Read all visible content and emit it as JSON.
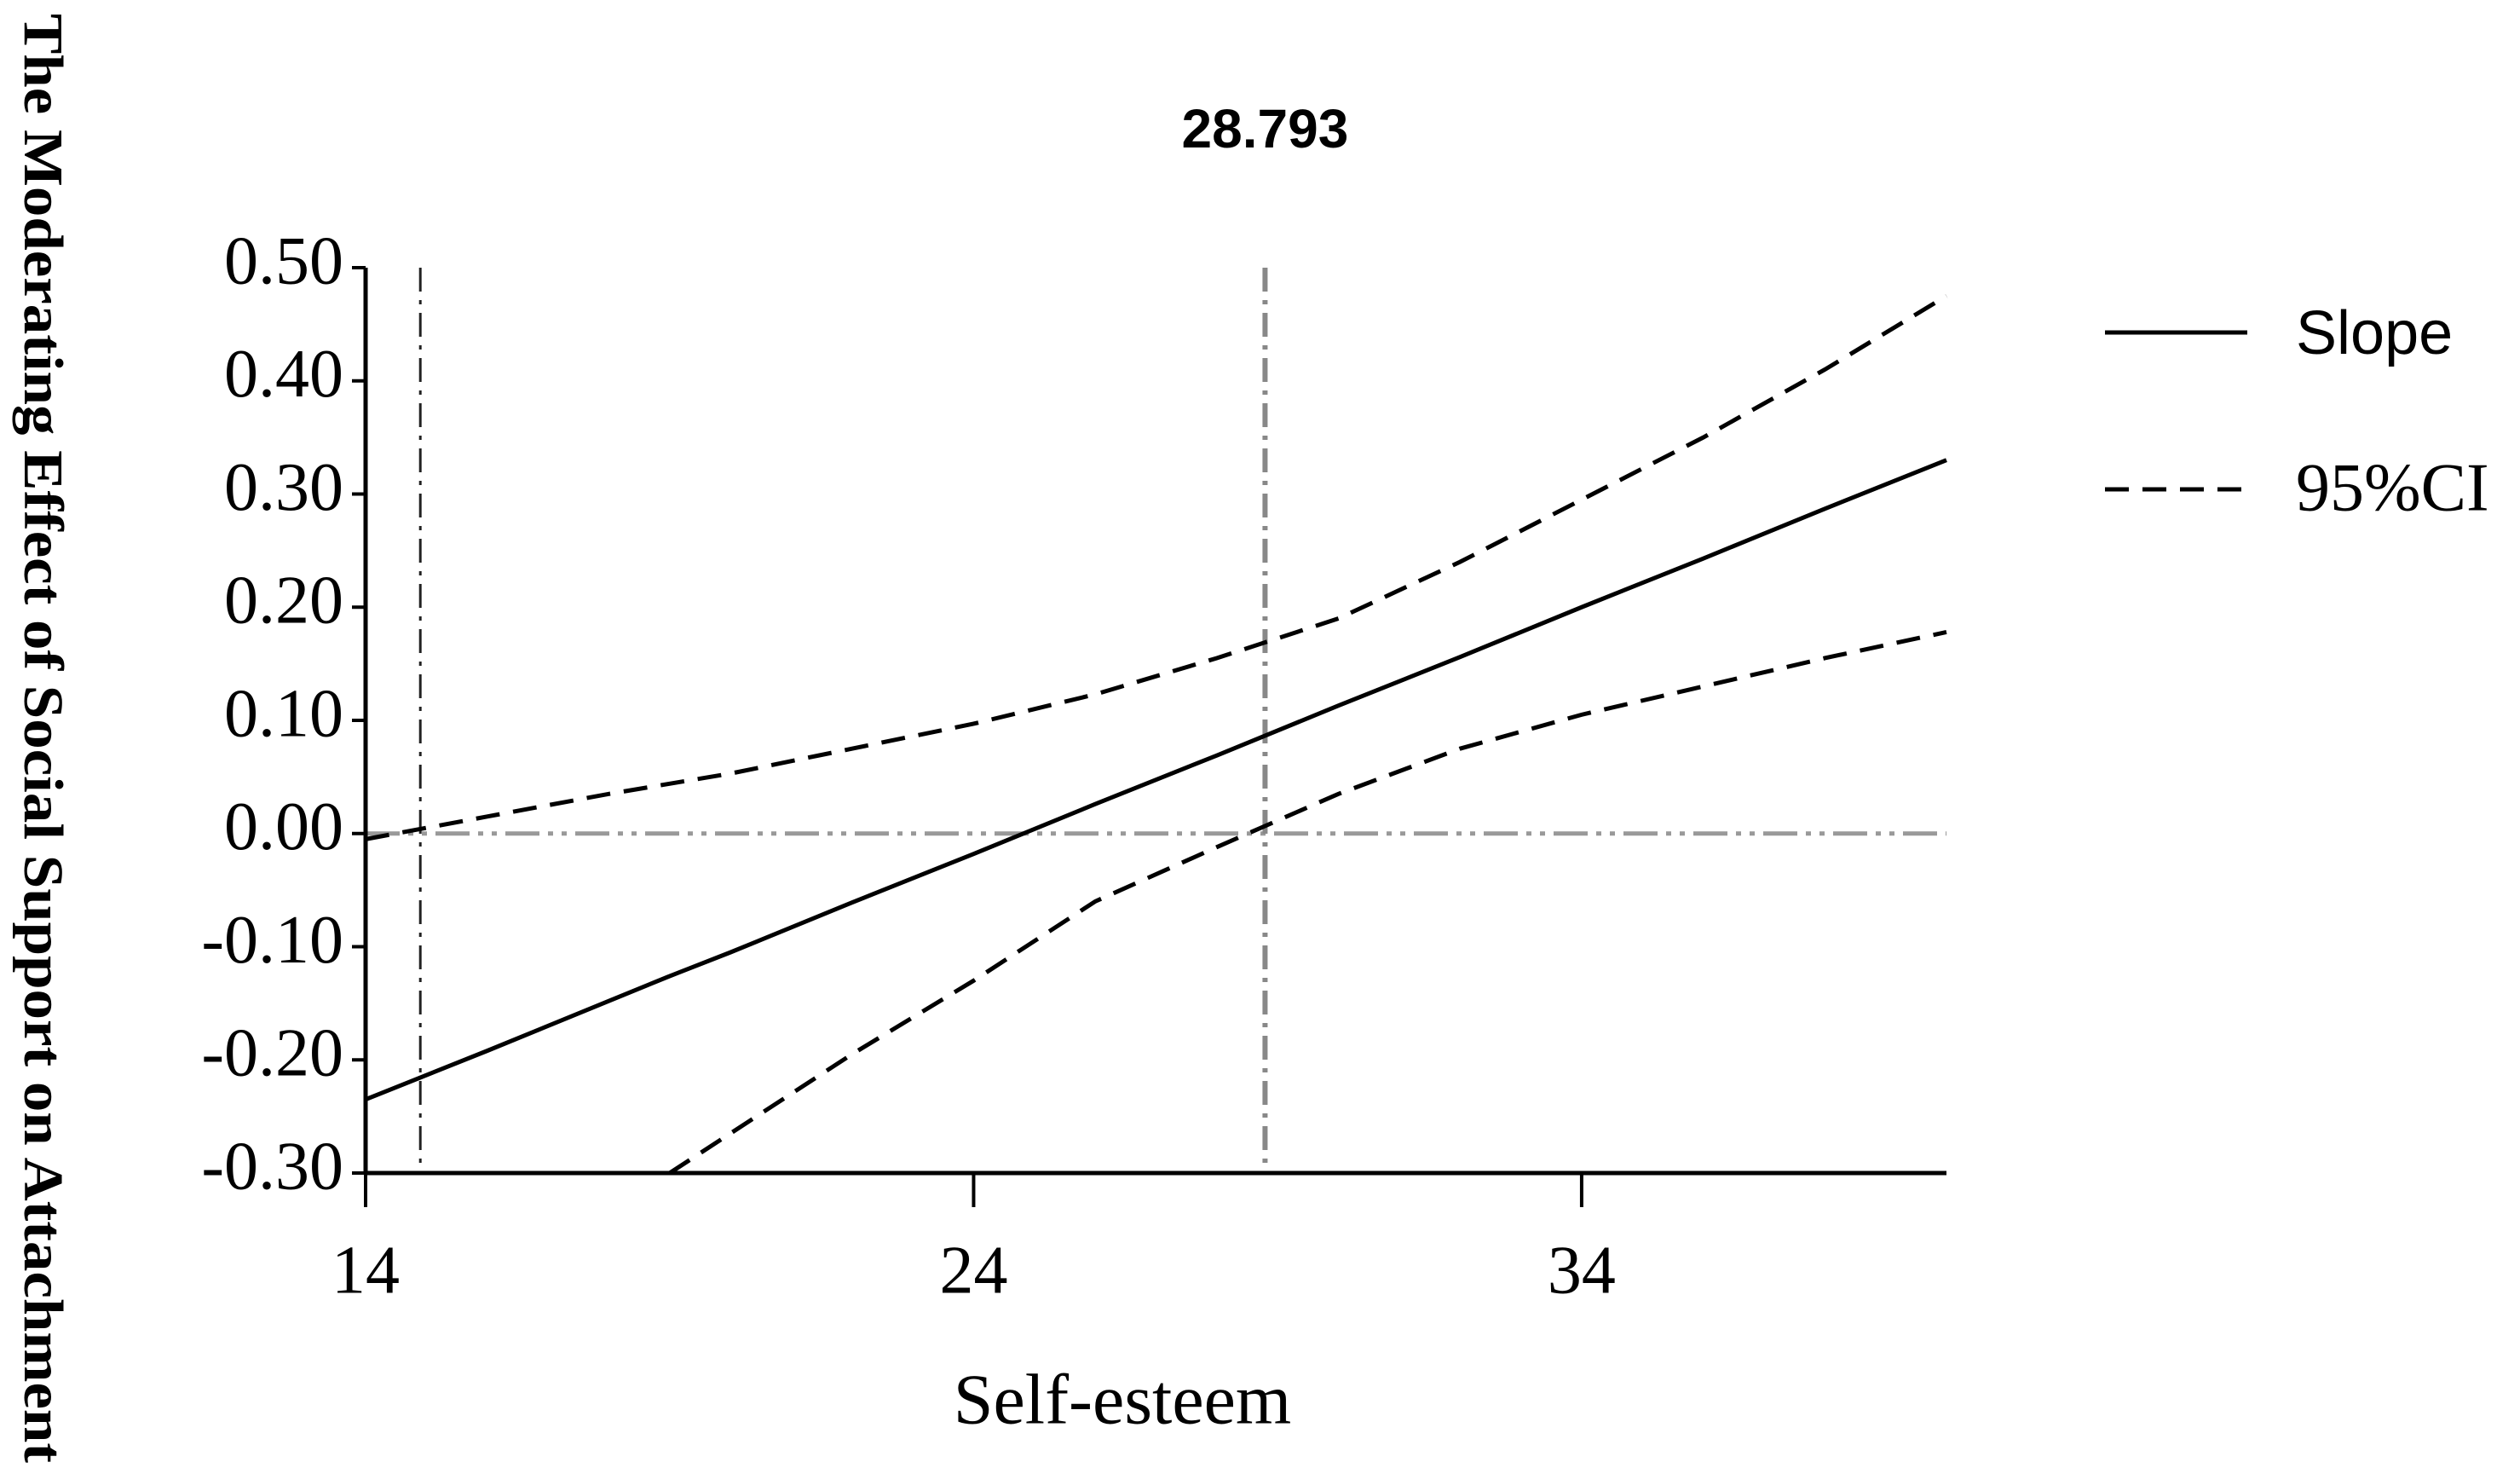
{
  "chart_data": {
    "type": "line",
    "ylabel": "The Moderating Effect of Social Support on Attachment",
    "xlabel": "Self-esteem",
    "x": [
      14,
      16,
      18,
      19,
      20,
      22,
      24,
      26,
      28,
      30,
      32,
      34,
      36,
      38,
      40
    ],
    "series": [
      {
        "name": "Slope",
        "color": "#000000",
        "dash": "solid",
        "values": [
          -0.235,
          -0.192,
          -0.148,
          -0.126,
          -0.105,
          -0.061,
          -0.018,
          0.026,
          0.069,
          0.113,
          0.156,
          0.2,
          0.243,
          0.287,
          0.33
        ]
      },
      {
        "name": "95%CI",
        "color": "#000000",
        "dash": "dashed",
        "upper": [
          -0.005,
          0.015,
          0.035,
          0.044,
          0.053,
          0.075,
          0.097,
          0.123,
          0.155,
          0.19,
          0.24,
          0.295,
          0.35,
          0.41,
          0.475
        ],
        "lower": [
          null,
          null,
          null,
          -0.3,
          -0.265,
          -0.195,
          -0.13,
          -0.06,
          -0.012,
          0.035,
          0.075,
          0.105,
          0.13,
          0.155,
          0.178
        ]
      }
    ],
    "xlim": [
      14,
      40
    ],
    "xticks": [
      14,
      24,
      34
    ],
    "ylim": [
      -0.3,
      0.5
    ],
    "yticks": [
      {
        "value": -0.3,
        "label": "-0.30"
      },
      {
        "value": -0.2,
        "label": "-0.20"
      },
      {
        "value": -0.1,
        "label": "-0.10"
      },
      {
        "value": 0,
        "label": "0.00"
      },
      {
        "value": 0.1,
        "label": "0.10"
      },
      {
        "value": 0.2,
        "label": "0.20"
      },
      {
        "value": 0.3,
        "label": "0.30"
      },
      {
        "value": 0.4,
        "label": "0.40"
      },
      {
        "value": 0.5,
        "label": "0.50"
      }
    ],
    "vlines": [
      14.9,
      28.793
    ],
    "hline": 0,
    "legend": "right"
  }
}
